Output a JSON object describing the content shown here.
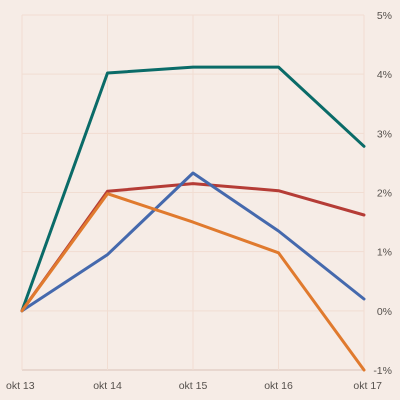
{
  "chart_data": {
    "type": "line",
    "x": [
      "okt 13",
      "okt 14",
      "okt 15",
      "okt 16",
      "okt 17"
    ],
    "y_ticks": [
      "5%",
      "4%",
      "3%",
      "2%",
      "1%",
      "0%",
      "-1%"
    ],
    "y_tick_values": [
      5,
      4,
      3,
      2,
      1,
      0,
      -1
    ],
    "ylim": [
      -1,
      5
    ],
    "y_axis_position": "right",
    "grid": true,
    "legend": "none",
    "series": [
      {
        "color": "#0a6b68",
        "values": [
          0,
          4.02,
          4.12,
          4.12,
          2.78
        ]
      },
      {
        "color": "#b53c36",
        "values": [
          0,
          2.02,
          2.15,
          2.03,
          1.62
        ]
      },
      {
        "color": "#4569ad",
        "values": [
          0,
          0.95,
          2.33,
          1.35,
          0.2
        ]
      },
      {
        "color": "#e07a2e",
        "values": [
          0,
          1.98,
          1.5,
          0.98,
          -1.0
        ]
      }
    ]
  }
}
